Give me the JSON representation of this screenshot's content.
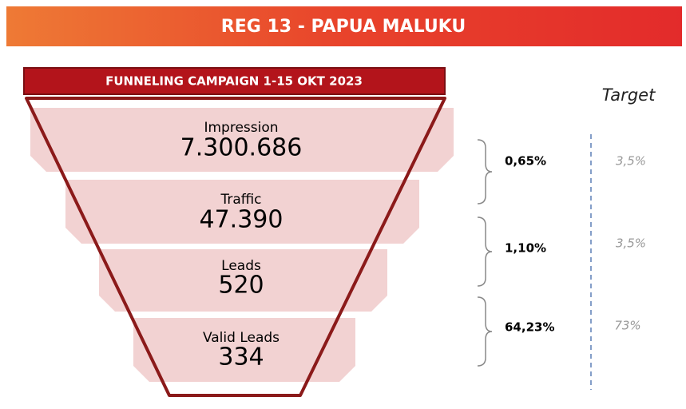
{
  "header": {
    "title": "REG 13 - PAPUA MALUKU"
  },
  "funnel": {
    "title": "FUNNELING CAMPAIGN 1-15 OKT 2023",
    "stages": [
      {
        "label": "Impression",
        "value": "7.300.686"
      },
      {
        "label": "Traffic",
        "value": "47.390"
      },
      {
        "label": "Leads",
        "value": "520"
      },
      {
        "label": "Valid Leads",
        "value": "334"
      }
    ]
  },
  "conversion": {
    "target_label": "Target",
    "rates": [
      {
        "actual": "0,65%",
        "target": "3,5%"
      },
      {
        "actual": "1,10%",
        "target": "3,5%"
      },
      {
        "actual": "64,23%",
        "target": "73%"
      }
    ]
  }
}
